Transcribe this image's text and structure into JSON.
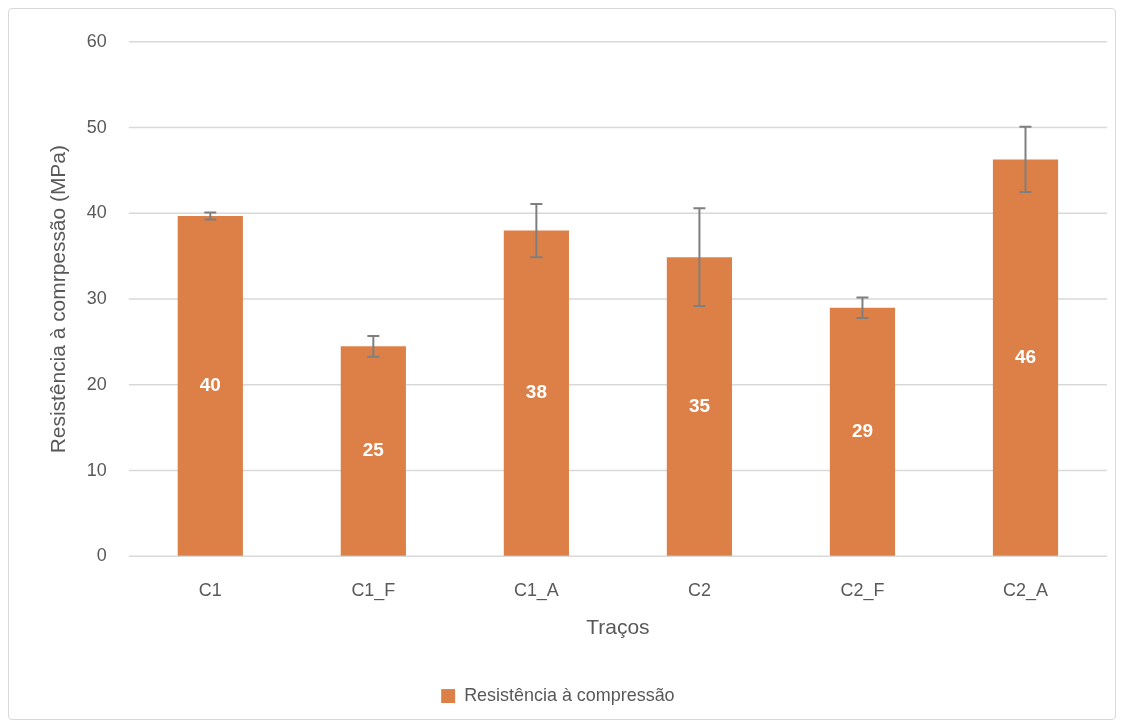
{
  "chart_data": {
    "type": "bar",
    "xlabel": "Traços",
    "ylabel": "Resistência à comrpessão (MPa)",
    "categories": [
      "C1",
      "C1_F",
      "C1_A",
      "C2",
      "C2_F",
      "C2_A"
    ],
    "series": [
      {
        "name": "Resistência à compressão",
        "color": "#dd8047",
        "values": [
          39.7,
          24.5,
          38.0,
          34.9,
          29.0,
          46.3
        ],
        "errors": [
          0.4,
          1.2,
          3.1,
          5.7,
          1.2,
          3.8
        ],
        "value_labels": [
          "40",
          "25",
          "38",
          "35",
          "29",
          "46"
        ]
      }
    ],
    "ylim": [
      0,
      60
    ],
    "yticks": [
      0,
      10,
      20,
      30,
      40,
      50,
      60
    ],
    "grid": "y",
    "legend": "bottom"
  }
}
